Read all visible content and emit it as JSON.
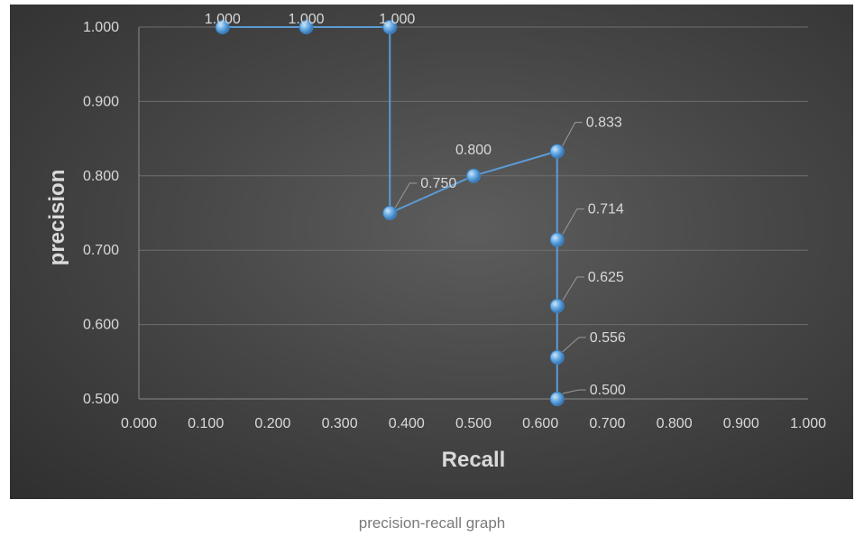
{
  "caption": "precision-recall graph",
  "chart_data": {
    "type": "line",
    "xlabel": "Recall",
    "ylabel": "precision",
    "xlim": [
      0.0,
      1.0
    ],
    "ylim": [
      0.5,
      1.0
    ],
    "x_ticks": [
      "0.000",
      "0.100",
      "0.200",
      "0.300",
      "0.400",
      "0.500",
      "0.600",
      "0.700",
      "0.800",
      "0.900",
      "1.000"
    ],
    "y_ticks": [
      "0.500",
      "0.600",
      "0.700",
      "0.800",
      "0.900",
      "1.000"
    ],
    "grid": "horizontal",
    "legend": "none",
    "colors": {
      "line": "#5b9bd5",
      "marker": "#5b9bd5",
      "text": "#d9d9d9",
      "grid": "#6e6e6e",
      "background": "#3f3f3f"
    },
    "series": [
      {
        "x": [
          0.125,
          0.25,
          0.375,
          0.375,
          0.5,
          0.625,
          0.625,
          0.625,
          0.625,
          0.625
        ],
        "y": [
          1.0,
          1.0,
          1.0,
          0.75,
          0.8,
          0.833,
          0.714,
          0.625,
          0.556,
          0.5
        ],
        "labels": [
          "1.000",
          "1.000",
          "1.000",
          "0.750",
          "0.800",
          "0.833",
          "0.714",
          "0.625",
          "0.556",
          "0.500"
        ]
      }
    ]
  }
}
